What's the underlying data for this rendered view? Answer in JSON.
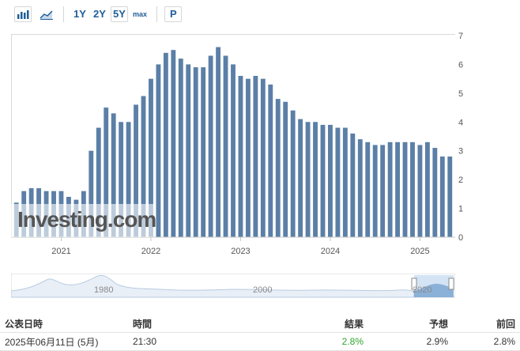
{
  "toolbar": {
    "buttons": [
      {
        "name": "bar-chart-icon-button",
        "icon": "bar-chart-icon"
      },
      {
        "name": "area-chart-icon-button",
        "icon": "area-chart-icon"
      }
    ],
    "ranges": [
      "1Y",
      "2Y",
      "5Y",
      "max"
    ],
    "active_range": "5Y",
    "p_label": "P",
    "accent": "#1f5e9a"
  },
  "chart_data": {
    "type": "bar",
    "bar_color": "#5b7fa6",
    "x_tick_labels": [
      "2021",
      "2022",
      "2023",
      "2024",
      "2025"
    ],
    "y_ticks": [
      0,
      1,
      2,
      3,
      4,
      5,
      6,
      7
    ],
    "ylim": [
      0,
      7
    ],
    "grid": false,
    "y_axis_position": "right",
    "x": [
      "2020-07",
      "2020-08",
      "2020-09",
      "2020-10",
      "2020-11",
      "2020-12",
      "2021-01",
      "2021-02",
      "2021-03",
      "2021-04",
      "2021-05",
      "2021-06",
      "2021-07",
      "2021-08",
      "2021-09",
      "2021-10",
      "2021-11",
      "2021-12",
      "2022-01",
      "2022-02",
      "2022-03",
      "2022-04",
      "2022-05",
      "2022-06",
      "2022-07",
      "2022-08",
      "2022-09",
      "2022-10",
      "2022-11",
      "2022-12",
      "2023-01",
      "2023-02",
      "2023-03",
      "2023-04",
      "2023-05",
      "2023-06",
      "2023-07",
      "2023-08",
      "2023-09",
      "2023-10",
      "2023-11",
      "2023-12",
      "2024-01",
      "2024-02",
      "2024-03",
      "2024-04",
      "2024-05",
      "2024-06",
      "2024-07",
      "2024-08",
      "2024-09",
      "2024-10",
      "2024-11",
      "2024-12",
      "2025-01",
      "2025-02",
      "2025-03",
      "2025-04",
      "2025-05"
    ],
    "values": [
      1.2,
      1.6,
      1.7,
      1.7,
      1.6,
      1.6,
      1.6,
      1.4,
      1.3,
      1.6,
      3.0,
      3.8,
      4.5,
      4.3,
      4.0,
      4.0,
      4.6,
      4.9,
      5.5,
      6.0,
      6.4,
      6.5,
      6.2,
      6.0,
      5.9,
      5.9,
      6.3,
      6.6,
      6.3,
      6.0,
      5.6,
      5.5,
      5.6,
      5.5,
      5.3,
      4.8,
      4.7,
      4.4,
      4.1,
      4.0,
      4.0,
      3.9,
      3.9,
      3.8,
      3.8,
      3.6,
      3.4,
      3.3,
      3.2,
      3.2,
      3.3,
      3.3,
      3.3,
      3.3,
      3.2,
      3.3,
      3.1,
      2.8,
      2.8
    ]
  },
  "navigator": {
    "labels": [
      "1980",
      "2000",
      "2020"
    ]
  },
  "watermark": "Investing.com",
  "table": {
    "headers": {
      "date": "公表日時",
      "time": "時間",
      "actual": "結果",
      "forecast": "予想",
      "previous": "前回"
    },
    "rows": [
      {
        "date": "2025年06月11日 (5月)",
        "time": "21:30",
        "actual": "2.8%",
        "forecast": "2.9%",
        "previous": "2.8%"
      }
    ]
  }
}
